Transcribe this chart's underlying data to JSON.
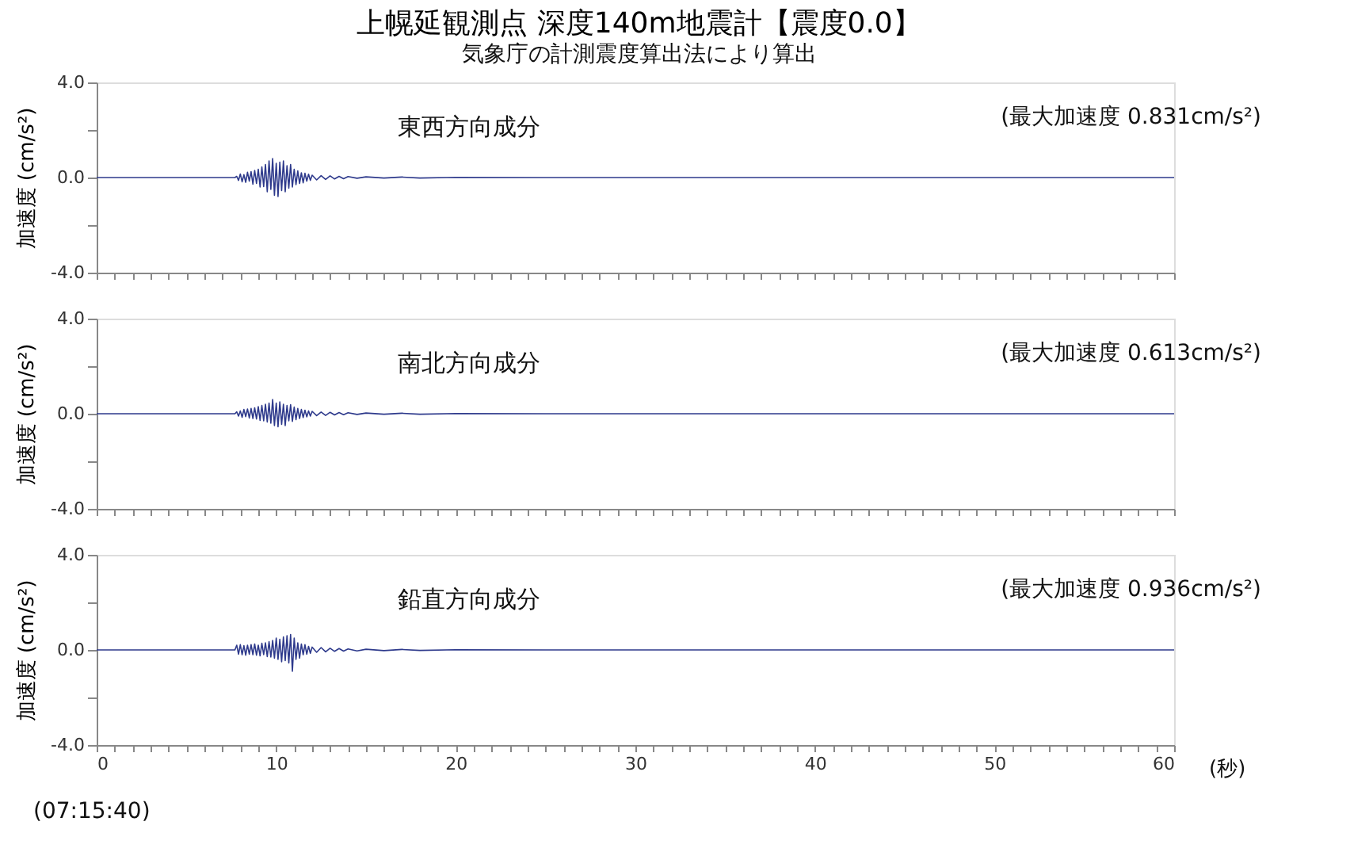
{
  "chart_data": [
    {
      "type": "line",
      "title": "上幌延観測点 深度140m地震計【震度0.0】",
      "subtitle": "気象庁の計測震度算出法により算出",
      "ylabel": "加速度 (cm/s²)",
      "annotations": [
        "東西方向成分",
        "(最大加速度 0.831cm/s²)"
      ],
      "tick_labels": "y",
      "grid": false,
      "line_style": "solid",
      "marker": "none",
      "x": [
        0,
        7.7,
        7.8,
        7.9,
        8.0,
        8.1,
        8.2,
        8.3,
        8.4,
        8.5,
        8.6,
        8.7,
        8.8,
        8.9,
        9.0,
        9.1,
        9.2,
        9.3,
        9.4,
        9.5,
        9.6,
        9.7,
        9.8,
        9.9,
        10.0,
        10.1,
        10.2,
        10.3,
        10.4,
        10.5,
        10.6,
        10.7,
        10.8,
        10.9,
        11.0,
        11.1,
        11.2,
        11.3,
        11.4,
        11.5,
        11.6,
        11.7,
        11.8,
        11.9,
        12.0,
        12.25,
        12.5,
        12.75,
        13.0,
        13.25,
        13.5,
        13.75,
        14.0,
        14.5,
        15.0,
        16.0,
        17.0,
        18.0,
        20.0,
        25.0,
        30.0,
        40.0,
        50.0,
        60.0
      ],
      "series": [
        {
          "color": "#2e3a8c",
          "values": [
            0,
            0,
            0.05,
            -0.12,
            0.15,
            -0.18,
            0.12,
            -0.2,
            0.22,
            -0.15,
            0.25,
            -0.28,
            0.3,
            -0.25,
            0.35,
            -0.4,
            0.45,
            -0.38,
            0.55,
            -0.6,
            0.7,
            -0.5,
            0.8,
            -0.75,
            0.6,
            -0.8,
            0.65,
            -0.55,
            0.7,
            -0.6,
            0.5,
            -0.45,
            0.55,
            -0.4,
            0.35,
            -0.3,
            0.28,
            -0.25,
            0.2,
            -0.22,
            0.18,
            -0.15,
            0.14,
            -0.12,
            0.1,
            -0.1,
            0.08,
            -0.08,
            0.07,
            -0.06,
            0.05,
            -0.05,
            0.04,
            -0.03,
            0.03,
            -0.02,
            0.02,
            -0.02,
            0.01,
            0,
            0,
            0,
            0,
            0
          ]
        }
      ],
      "xlim": [
        0,
        60
      ],
      "ylim": [
        -4,
        4
      ],
      "yticks": [
        {
          "value": 4,
          "label": "4.0"
        },
        {
          "value": 2,
          "label": null
        },
        {
          "value": 0,
          "label": "0.0"
        },
        {
          "value": -2,
          "label": null
        },
        {
          "value": -4,
          "label": "-4.0"
        }
      ],
      "xticks": [
        0,
        {
          "value": 1,
          "label": null
        },
        {
          "value": 2,
          "label": null
        },
        {
          "value": 3,
          "label": null
        },
        {
          "value": 4,
          "label": null
        },
        {
          "value": 5,
          "label": null
        },
        {
          "value": 6,
          "label": null
        },
        {
          "value": 7,
          "label": null
        },
        {
          "value": 8,
          "label": null
        },
        {
          "value": 9,
          "label": null
        },
        10,
        {
          "value": 11,
          "label": null
        },
        {
          "value": 12,
          "label": null
        },
        {
          "value": 13,
          "label": null
        },
        {
          "value": 14,
          "label": null
        },
        {
          "value": 15,
          "label": null
        },
        {
          "value": 16,
          "label": null
        },
        {
          "value": 17,
          "label": null
        },
        {
          "value": 18,
          "label": null
        },
        {
          "value": 19,
          "label": null
        },
        20,
        {
          "value": 21,
          "label": null
        },
        {
          "value": 22,
          "label": null
        },
        {
          "value": 23,
          "label": null
        },
        {
          "value": 24,
          "label": null
        },
        {
          "value": 25,
          "label": null
        },
        {
          "value": 26,
          "label": null
        },
        {
          "value": 27,
          "label": null
        },
        {
          "value": 28,
          "label": null
        },
        {
          "value": 29,
          "label": null
        },
        30,
        {
          "value": 31,
          "label": null
        },
        {
          "value": 32,
          "label": null
        },
        {
          "value": 33,
          "label": null
        },
        {
          "value": 34,
          "label": null
        },
        {
          "value": 35,
          "label": null
        },
        {
          "value": 36,
          "label": null
        },
        {
          "value": 37,
          "label": null
        },
        {
          "value": 38,
          "label": null
        },
        {
          "value": 39,
          "label": null
        },
        40,
        {
          "value": 41,
          "label": null
        },
        {
          "value": 42,
          "label": null
        },
        {
          "value": 43,
          "label": null
        },
        {
          "value": 44,
          "label": null
        },
        {
          "value": 45,
          "label": null
        },
        {
          "value": 46,
          "label": null
        },
        {
          "value": 47,
          "label": null
        },
        {
          "value": 48,
          "label": null
        },
        {
          "value": 49,
          "label": null
        },
        50,
        {
          "value": 51,
          "label": null
        },
        {
          "value": 52,
          "label": null
        },
        {
          "value": 53,
          "label": null
        },
        {
          "value": 54,
          "label": null
        },
        {
          "value": 55,
          "label": null
        },
        {
          "value": 56,
          "label": null
        },
        {
          "value": 57,
          "label": null
        },
        {
          "value": 58,
          "label": null
        },
        {
          "value": 59,
          "label": null
        },
        60
      ]
    },
    {
      "type": "line",
      "ylabel": "加速度 (cm/s²)",
      "annotations": [
        "南北方向成分",
        "(最大加速度 0.613cm/s²)"
      ],
      "tick_labels": "y",
      "grid": false,
      "line_style": "solid",
      "marker": "none",
      "x": [
        0,
        7.7,
        7.8,
        7.9,
        8.0,
        8.1,
        8.2,
        8.3,
        8.4,
        8.5,
        8.6,
        8.7,
        8.8,
        8.9,
        9.0,
        9.1,
        9.2,
        9.3,
        9.4,
        9.5,
        9.6,
        9.7,
        9.8,
        9.9,
        10.0,
        10.1,
        10.2,
        10.3,
        10.4,
        10.5,
        10.6,
        10.7,
        10.8,
        10.9,
        11.0,
        11.1,
        11.2,
        11.3,
        11.4,
        11.5,
        11.6,
        11.7,
        11.8,
        11.9,
        12.0,
        12.25,
        12.5,
        12.75,
        13.0,
        13.25,
        13.5,
        13.75,
        14.0,
        14.5,
        15.0,
        16.0,
        17.0,
        18.0,
        20.0,
        25.0,
        30.0,
        40.0,
        50.0,
        60.0
      ],
      "series": [
        {
          "color": "#2e3a8c",
          "values": [
            0,
            0,
            0.08,
            -0.1,
            0.12,
            -0.15,
            0.18,
            -0.12,
            0.2,
            -0.18,
            0.22,
            -0.2,
            0.25,
            -0.22,
            0.3,
            -0.28,
            0.35,
            -0.3,
            0.4,
            -0.35,
            0.45,
            -0.4,
            0.6,
            -0.5,
            0.45,
            -0.55,
            0.5,
            -0.45,
            0.4,
            -0.5,
            0.35,
            -0.3,
            0.38,
            -0.32,
            0.28,
            -0.25,
            0.22,
            -0.2,
            0.18,
            -0.16,
            0.15,
            -0.13,
            0.12,
            -0.1,
            0.1,
            -0.08,
            0.07,
            -0.07,
            0.06,
            -0.05,
            0.05,
            -0.04,
            0.04,
            -0.03,
            0.03,
            -0.02,
            0.02,
            -0.02,
            0.01,
            0,
            0,
            0,
            0,
            0
          ]
        }
      ],
      "xlim": [
        0,
        60
      ],
      "ylim": [
        -4,
        4
      ],
      "yticks": [
        {
          "value": 4,
          "label": "4.0"
        },
        {
          "value": 2,
          "label": null
        },
        {
          "value": 0,
          "label": "0.0"
        },
        {
          "value": -2,
          "label": null
        },
        {
          "value": -4,
          "label": "-4.0"
        }
      ],
      "xticks": [
        0,
        {
          "value": 1,
          "label": null
        },
        {
          "value": 2,
          "label": null
        },
        {
          "value": 3,
          "label": null
        },
        {
          "value": 4,
          "label": null
        },
        {
          "value": 5,
          "label": null
        },
        {
          "value": 6,
          "label": null
        },
        {
          "value": 7,
          "label": null
        },
        {
          "value": 8,
          "label": null
        },
        {
          "value": 9,
          "label": null
        },
        10,
        {
          "value": 11,
          "label": null
        },
        {
          "value": 12,
          "label": null
        },
        {
          "value": 13,
          "label": null
        },
        {
          "value": 14,
          "label": null
        },
        {
          "value": 15,
          "label": null
        },
        {
          "value": 16,
          "label": null
        },
        {
          "value": 17,
          "label": null
        },
        {
          "value": 18,
          "label": null
        },
        {
          "value": 19,
          "label": null
        },
        20,
        {
          "value": 21,
          "label": null
        },
        {
          "value": 22,
          "label": null
        },
        {
          "value": 23,
          "label": null
        },
        {
          "value": 24,
          "label": null
        },
        {
          "value": 25,
          "label": null
        },
        {
          "value": 26,
          "label": null
        },
        {
          "value": 27,
          "label": null
        },
        {
          "value": 28,
          "label": null
        },
        {
          "value": 29,
          "label": null
        },
        30,
        {
          "value": 31,
          "label": null
        },
        {
          "value": 32,
          "label": null
        },
        {
          "value": 33,
          "label": null
        },
        {
          "value": 34,
          "label": null
        },
        {
          "value": 35,
          "label": null
        },
        {
          "value": 36,
          "label": null
        },
        {
          "value": 37,
          "label": null
        },
        {
          "value": 38,
          "label": null
        },
        {
          "value": 39,
          "label": null
        },
        40,
        {
          "value": 41,
          "label": null
        },
        {
          "value": 42,
          "label": null
        },
        {
          "value": 43,
          "label": null
        },
        {
          "value": 44,
          "label": null
        },
        {
          "value": 45,
          "label": null
        },
        {
          "value": 46,
          "label": null
        },
        {
          "value": 47,
          "label": null
        },
        {
          "value": 48,
          "label": null
        },
        {
          "value": 49,
          "label": null
        },
        50,
        {
          "value": 51,
          "label": null
        },
        {
          "value": 52,
          "label": null
        },
        {
          "value": 53,
          "label": null
        },
        {
          "value": 54,
          "label": null
        },
        {
          "value": 55,
          "label": null
        },
        {
          "value": 56,
          "label": null
        },
        {
          "value": 57,
          "label": null
        },
        {
          "value": 58,
          "label": null
        },
        {
          "value": 59,
          "label": null
        },
        60
      ]
    },
    {
      "type": "line",
      "xlabel": "(秒)",
      "ylabel": "加速度 (cm/s²)",
      "annotations": [
        "鉛直方向成分",
        "(最大加速度 0.936cm/s²)",
        "(07:15:40)"
      ],
      "grid": false,
      "line_style": "solid",
      "marker": "none",
      "x": [
        0,
        7.7,
        7.8,
        7.9,
        8.0,
        8.1,
        8.2,
        8.3,
        8.4,
        8.5,
        8.6,
        8.7,
        8.8,
        8.9,
        9.0,
        9.1,
        9.2,
        9.3,
        9.4,
        9.5,
        9.6,
        9.7,
        9.8,
        9.9,
        10.0,
        10.1,
        10.2,
        10.3,
        10.4,
        10.5,
        10.6,
        10.7,
        10.8,
        10.9,
        11.0,
        11.1,
        11.2,
        11.3,
        11.4,
        11.5,
        11.6,
        11.7,
        11.8,
        11.9,
        12.0,
        12.25,
        12.5,
        12.75,
        13.0,
        13.25,
        13.5,
        13.75,
        14.0,
        14.5,
        15.0,
        16.0,
        17.0,
        18.0,
        20.0,
        25.0,
        30.0,
        40.0,
        50.0,
        60.0
      ],
      "series": [
        {
          "color": "#2e3a8c",
          "values": [
            0,
            0,
            0.2,
            -0.18,
            0.22,
            -0.2,
            0.18,
            -0.22,
            0.2,
            -0.18,
            0.22,
            -0.2,
            0.25,
            -0.22,
            0.2,
            -0.25,
            0.28,
            -0.2,
            0.3,
            -0.28,
            0.35,
            -0.3,
            0.4,
            -0.35,
            0.5,
            -0.4,
            0.45,
            -0.5,
            0.55,
            -0.45,
            0.6,
            -0.55,
            0.65,
            -0.9,
            0.5,
            -0.4,
            0.3,
            -0.35,
            0.25,
            -0.2,
            0.22,
            -0.18,
            0.15,
            -0.14,
            0.12,
            -0.1,
            0.1,
            -0.08,
            0.07,
            -0.06,
            0.06,
            -0.05,
            0.04,
            -0.04,
            0.03,
            -0.03,
            0.02,
            -0.02,
            0.01,
            0,
            0,
            0,
            0,
            0
          ]
        }
      ],
      "xlim": [
        0,
        60
      ],
      "ylim": [
        -4,
        4
      ],
      "yticks": [
        {
          "value": 4,
          "label": "4.0"
        },
        {
          "value": 2,
          "label": null
        },
        {
          "value": 0,
          "label": "0.0"
        },
        {
          "value": -2,
          "label": null
        },
        {
          "value": -4,
          "label": "-4.0"
        }
      ],
      "xticks": [
        0,
        {
          "value": 1,
          "label": null
        },
        {
          "value": 2,
          "label": null
        },
        {
          "value": 3,
          "label": null
        },
        {
          "value": 4,
          "label": null
        },
        {
          "value": 5,
          "label": null
        },
        {
          "value": 6,
          "label": null
        },
        {
          "value": 7,
          "label": null
        },
        {
          "value": 8,
          "label": null
        },
        {
          "value": 9,
          "label": null
        },
        10,
        {
          "value": 11,
          "label": null
        },
        {
          "value": 12,
          "label": null
        },
        {
          "value": 13,
          "label": null
        },
        {
          "value": 14,
          "label": null
        },
        {
          "value": 15,
          "label": null
        },
        {
          "value": 16,
          "label": null
        },
        {
          "value": 17,
          "label": null
        },
        {
          "value": 18,
          "label": null
        },
        {
          "value": 19,
          "label": null
        },
        20,
        {
          "value": 21,
          "label": null
        },
        {
          "value": 22,
          "label": null
        },
        {
          "value": 23,
          "label": null
        },
        {
          "value": 24,
          "label": null
        },
        {
          "value": 25,
          "label": null
        },
        {
          "value": 26,
          "label": null
        },
        {
          "value": 27,
          "label": null
        },
        {
          "value": 28,
          "label": null
        },
        {
          "value": 29,
          "label": null
        },
        30,
        {
          "value": 31,
          "label": null
        },
        {
          "value": 32,
          "label": null
        },
        {
          "value": 33,
          "label": null
        },
        {
          "value": 34,
          "label": null
        },
        {
          "value": 35,
          "label": null
        },
        {
          "value": 36,
          "label": null
        },
        {
          "value": 37,
          "label": null
        },
        {
          "value": 38,
          "label": null
        },
        {
          "value": 39,
          "label": null
        },
        40,
        {
          "value": 41,
          "label": null
        },
        {
          "value": 42,
          "label": null
        },
        {
          "value": 43,
          "label": null
        },
        {
          "value": 44,
          "label": null
        },
        {
          "value": 45,
          "label": null
        },
        {
          "value": 46,
          "label": null
        },
        {
          "value": 47,
          "label": null
        },
        {
          "value": 48,
          "label": null
        },
        {
          "value": 49,
          "label": null
        },
        50,
        {
          "value": 51,
          "label": null
        },
        {
          "value": 52,
          "label": null
        },
        {
          "value": 53,
          "label": null
        },
        {
          "value": 54,
          "label": null
        },
        {
          "value": 55,
          "label": null
        },
        {
          "value": 56,
          "label": null
        },
        {
          "value": 57,
          "label": null
        },
        {
          "value": 58,
          "label": null
        },
        {
          "value": 59,
          "label": null
        },
        60
      ]
    }
  ]
}
